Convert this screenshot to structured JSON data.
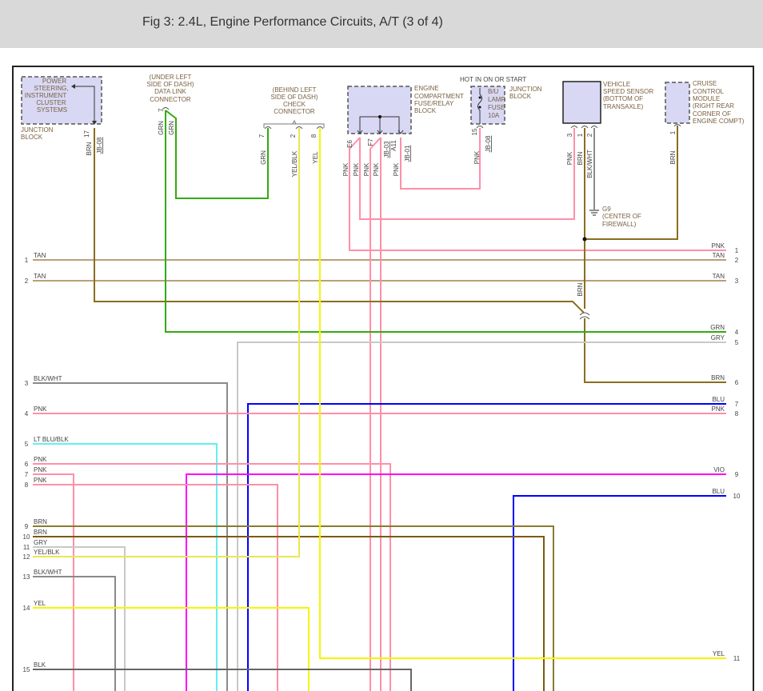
{
  "header": {
    "title": "Fig 3: 2.4L, Engine Performance Circuits, A/T (3 of 4)"
  },
  "colors": {
    "PNK": "#ff8fa8",
    "TAN": "#b8a07a",
    "BRN": "#8c6d1f",
    "BRN2": "#7a5a10",
    "GRN": "#33aa11",
    "GRY": "#c8c8c8",
    "BLK_WHT": "#8a8a8a",
    "BLU": "#0000ff",
    "VIO": "#ff00ff",
    "YEL": "#f5f500",
    "LT_BLU_BLK": "#66eeee",
    "BLK": "#666666",
    "component_fill": "#d8d8f5"
  },
  "components": {
    "power_steering": {
      "lines": [
        "POWER",
        "STEERING,",
        "INSTRUMENT",
        "CLUSTER",
        "SYSTEMS"
      ],
      "location": [
        "JUNCTION",
        "BLOCK"
      ],
      "pin": "17",
      "wire": "BRN",
      "circuit": "JB-08"
    },
    "data_link": {
      "lines": [
        "(UNDER LEFT",
        "SIDE OF DASH)",
        "DATA LINK",
        "CONNECTOR"
      ],
      "pin": "7",
      "wires": [
        "GRN",
        "GRN"
      ]
    },
    "check_connector": {
      "lines": [
        "(BEHIND LEFT",
        "SIDE OF DASH)",
        "CHECK",
        "CONNECTOR"
      ],
      "pins": [
        "7",
        "2",
        "8"
      ],
      "wires": [
        "GRN",
        "YEL/BLK",
        "YEL"
      ]
    },
    "fuse_relay_block": {
      "lines": [
        "ENGINE",
        "COMPARTMENT",
        "FUSE/RELAY",
        "BLOCK"
      ],
      "pins": [
        "E6",
        "F7",
        "A11"
      ],
      "wires": [
        "PNK",
        "PNK",
        "PNK",
        "PNK",
        "PNK"
      ],
      "circuits": [
        "JB-03",
        "JB-01"
      ]
    },
    "fuse": {
      "hot_label": "HOT IN ON OR START",
      "location": [
        "JUNCTION",
        "BLOCK"
      ],
      "lines": [
        "B/U",
        "LAMP",
        "FUSE",
        "10A"
      ],
      "pin": "15",
      "wire": "PNK",
      "circuit": "JB-08"
    },
    "vss": {
      "lines": [
        "VEHICLE",
        "SPEED SENSOR",
        "(BOTTOM OF",
        "TRANSAXLE)"
      ],
      "pins": [
        "3",
        "1",
        "2"
      ],
      "wires": [
        "PNK",
        "BRN",
        "BLK/WHT"
      ]
    },
    "ground": {
      "lines": [
        "G9",
        "(CENTER OF",
        "FIREWALL)"
      ]
    },
    "cruise": {
      "lines": [
        "CRUISE",
        "CONTROL",
        "MODULE",
        "(RIGHT REAR",
        "CORNER OF",
        "ENGINE COMPT)"
      ],
      "pin": "1",
      "wire": "BRN"
    },
    "splice_wire": "BRN"
  },
  "left_terminals": [
    {
      "num": "1",
      "label": "TAN"
    },
    {
      "num": "2",
      "label": "TAN"
    },
    {
      "num": "3",
      "label": "BLK/WHT"
    },
    {
      "num": "4",
      "label": "PNK"
    },
    {
      "num": "5",
      "label": "LT BLU/BLK"
    },
    {
      "num": "6",
      "label": "PNK"
    },
    {
      "num": "7",
      "label": "PNK"
    },
    {
      "num": "8",
      "label": "PNK"
    },
    {
      "num": "9",
      "label": "BRN"
    },
    {
      "num": "10",
      "label": "BRN"
    },
    {
      "num": "11",
      "label": "GRY"
    },
    {
      "num": "12",
      "label": "YEL/BLK"
    },
    {
      "num": "13",
      "label": "BLK/WHT"
    },
    {
      "num": "14",
      "label": "YEL"
    },
    {
      "num": "15",
      "label": "BLK"
    }
  ],
  "right_terminals": [
    {
      "num": "1",
      "label": "PNK"
    },
    {
      "num": "2",
      "label": "TAN"
    },
    {
      "num": "3",
      "label": "TAN"
    },
    {
      "num": "4",
      "label": "GRN"
    },
    {
      "num": "5",
      "label": "GRY"
    },
    {
      "num": "6",
      "label": "BRN"
    },
    {
      "num": "7",
      "label": "BLU"
    },
    {
      "num": "8",
      "label": "PNK"
    },
    {
      "num": "9",
      "label": "VIO"
    },
    {
      "num": "10",
      "label": "BLU"
    },
    {
      "num": "11",
      "label": "YEL"
    }
  ]
}
